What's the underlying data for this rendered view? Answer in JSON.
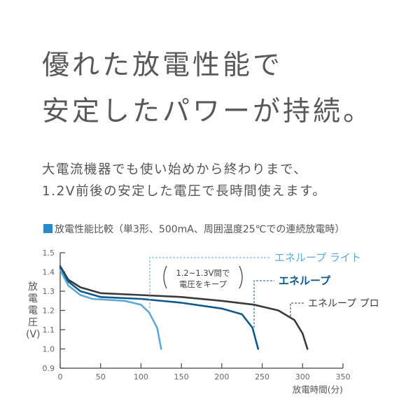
{
  "headline": [
    "優れた放電性能で",
    "安定したパワーが持続。"
  ],
  "body": [
    "大電流機器でも使い始めから終わりまで、",
    "1.2V前後の安定した電圧で長時間使えます。"
  ],
  "caption": "放電性能比較（単3形、500mA、周囲温度25℃での連続放電時）",
  "chart_data": {
    "type": "line",
    "title": "放電性能比較（単3形、500mA、周囲温度25℃での連続放電時）",
    "xlabel": "放電時間(分)",
    "ylabel": "放電電圧(V)",
    "xlim": [
      0,
      350
    ],
    "ylim": [
      0.9,
      1.5
    ],
    "xticks": [
      "0",
      "50",
      "100",
      "150",
      "200",
      "250",
      "300",
      "350"
    ],
    "yticks": [
      "0.9",
      "1.0",
      "1.1",
      "1.2",
      "1.3",
      "1.4",
      "1.5"
    ],
    "grid": false,
    "annotation": [
      "1.2~1.3V間で",
      "電圧をキープ"
    ],
    "series": [
      {
        "name": "エネループ プロ",
        "color": "#3a3a3a",
        "x": [
          0,
          10,
          25,
          50,
          100,
          150,
          200,
          240,
          270,
          290,
          300,
          306
        ],
        "y": [
          1.43,
          1.36,
          1.32,
          1.29,
          1.28,
          1.27,
          1.25,
          1.23,
          1.2,
          1.15,
          1.08,
          1.0
        ]
      },
      {
        "name": "エネループ",
        "color": "#0d5a8e",
        "x": [
          0,
          10,
          25,
          50,
          100,
          150,
          200,
          225,
          238,
          245
        ],
        "y": [
          1.42,
          1.35,
          1.3,
          1.27,
          1.26,
          1.24,
          1.21,
          1.18,
          1.11,
          1.0
        ]
      },
      {
        "name": "エネループ ライト",
        "color": "#5fa9d6",
        "x": [
          0,
          10,
          25,
          40,
          80,
          100,
          110,
          120,
          125
        ],
        "y": [
          1.41,
          1.33,
          1.28,
          1.26,
          1.25,
          1.23,
          1.19,
          1.11,
          1.0
        ]
      }
    ]
  }
}
